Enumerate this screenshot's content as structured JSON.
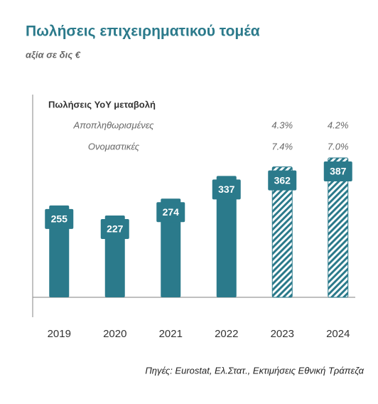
{
  "chart_data": {
    "type": "bar",
    "title": "Πωλήσεις επιχειρηματικού τομέα",
    "subtitle": "αξία σε δις €",
    "categories": [
      "2019",
      "2020",
      "2021",
      "2022",
      "2023",
      "2024"
    ],
    "values": [
      255,
      227,
      274,
      337,
      362,
      387
    ],
    "hatched": [
      false,
      false,
      false,
      false,
      true,
      true
    ],
    "color": "#2b7a8b",
    "table": {
      "title": "Πωλήσεις YoY μεταβολή",
      "rows": [
        {
          "name": "Αποπληθωρισμένες",
          "values": [
            null,
            null,
            null,
            null,
            "4.3%",
            "4.2%"
          ]
        },
        {
          "name": "Ονομαστικές",
          "values": [
            null,
            null,
            null,
            null,
            "7.4%",
            "7.0%"
          ]
        }
      ]
    },
    "source": "Πηγές: Eurostat, Ελ.Στατ., Εκτιμήσεις Εθνική Τράπεζα"
  }
}
